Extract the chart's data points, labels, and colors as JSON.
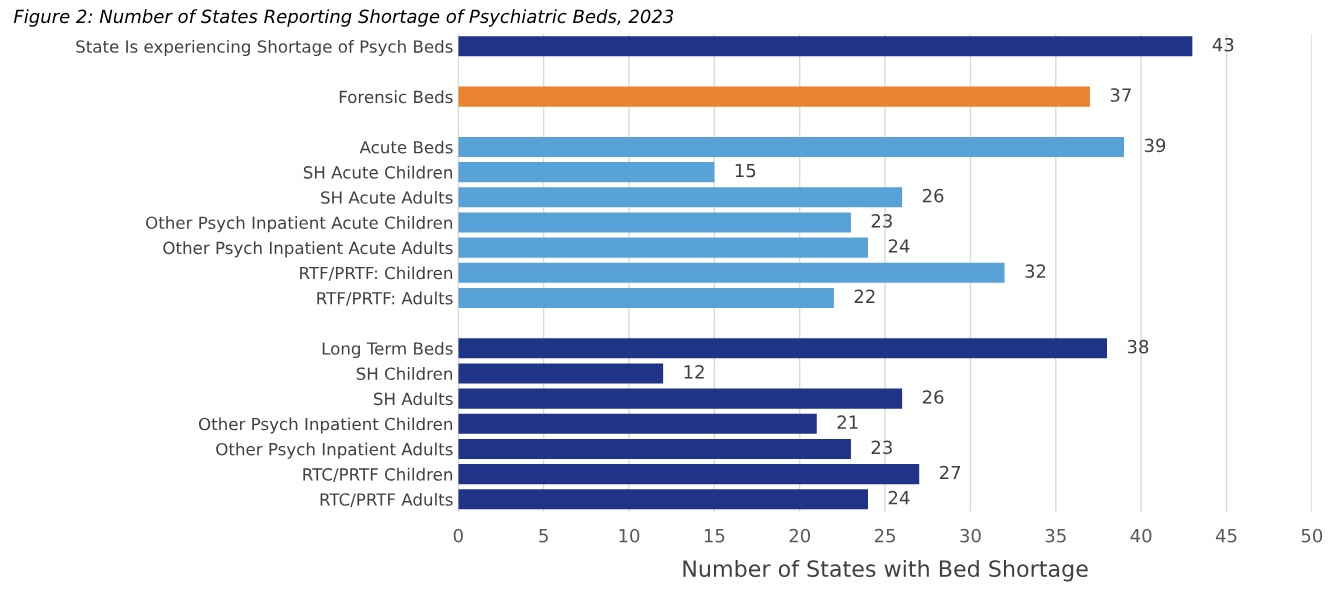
{
  "chart_data": {
    "type": "bar",
    "orientation": "horizontal",
    "title": "Figure 2: Number of States Reporting Shortage of Psychiatric Beds, 2023",
    "categories": [
      "State Is experiencing Shortage of Psych Beds",
      null,
      "Forensic Beds",
      null,
      "Acute Beds",
      "SH Acute Children",
      "SH Acute Adults",
      "Other Psych Inpatient Acute Children",
      "Other Psych Inpatient Acute Adults",
      "RTF/PRTF: Children",
      "RTF/PRTF: Adults",
      null,
      "Long Term Beds",
      "SH Children",
      "SH Adults",
      "Other Psych Inpatient Children",
      "Other Psych Inpatient Adults",
      "RTC/PRTF Children",
      "RTC/PRTF Adults"
    ],
    "values": [
      43,
      null,
      37,
      null,
      39,
      15,
      26,
      23,
      24,
      32,
      22,
      null,
      38,
      12,
      26,
      21,
      23,
      27,
      24
    ],
    "colors": [
      "#1f3387",
      null,
      "#e8842f",
      null,
      "#58a2d8",
      "#58a2d8",
      "#58a2d8",
      "#58a2d8",
      "#58a2d8",
      "#58a2d8",
      "#58a2d8",
      null,
      "#1f3387",
      "#1f3387",
      "#1f3387",
      "#1f3387",
      "#1f3387",
      "#1f3387",
      "#1f3387"
    ],
    "xlabel": "Number of States with Bed Shortage",
    "xlim": [
      0,
      50
    ],
    "xticks": [
      0,
      5,
      10,
      15,
      20,
      25,
      30,
      35,
      40,
      45,
      50
    ],
    "grid": "x",
    "data_labels": true,
    "legend": false
  }
}
